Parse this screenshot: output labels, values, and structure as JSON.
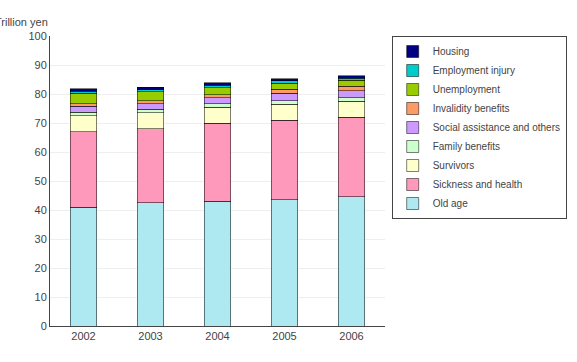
{
  "chart_data": {
    "type": "bar",
    "stacked": true,
    "ylabel": "Trillion yen",
    "categories": [
      "2002",
      "2003",
      "2004",
      "2005",
      "2006"
    ],
    "series": [
      {
        "name": "Old age",
        "color": "#aee8f0",
        "values": [
          41.0,
          42.5,
          43.0,
          43.5,
          44.5
        ]
      },
      {
        "name": "Sickness and health",
        "color": "#ff99bb",
        "values": [
          26.0,
          25.5,
          27.0,
          27.5,
          27.5
        ]
      },
      {
        "name": "Survivors",
        "color": "#ffffcc",
        "values": [
          5.5,
          5.5,
          5.5,
          5.5,
          5.5
        ]
      },
      {
        "name": "Family benefits",
        "color": "#ccffcc",
        "values": [
          1.2,
          1.2,
          1.2,
          1.2,
          1.2
        ]
      },
      {
        "name": "Social assistance and others",
        "color": "#cc99ff",
        "values": [
          2.0,
          2.0,
          2.0,
          2.5,
          2.5
        ]
      },
      {
        "name": "Invalidity benefits",
        "color": "#ff9966",
        "values": [
          1.0,
          1.0,
          1.0,
          1.5,
          1.5
        ]
      },
      {
        "name": "Unemployment",
        "color": "#99cc00",
        "values": [
          3.5,
          3.0,
          2.5,
          2.0,
          2.0
        ]
      },
      {
        "name": "Employment injury",
        "color": "#00cccc",
        "values": [
          0.8,
          0.8,
          0.8,
          0.8,
          0.8
        ]
      },
      {
        "name": "Housing",
        "color": "#000080",
        "values": [
          0.8,
          0.8,
          0.8,
          0.8,
          0.8
        ]
      }
    ],
    "ylim": [
      0,
      100
    ],
    "yticks": [
      0,
      10,
      20,
      30,
      40,
      50,
      60,
      70,
      80,
      90,
      100
    ],
    "grid": true,
    "legend": "upper right"
  }
}
